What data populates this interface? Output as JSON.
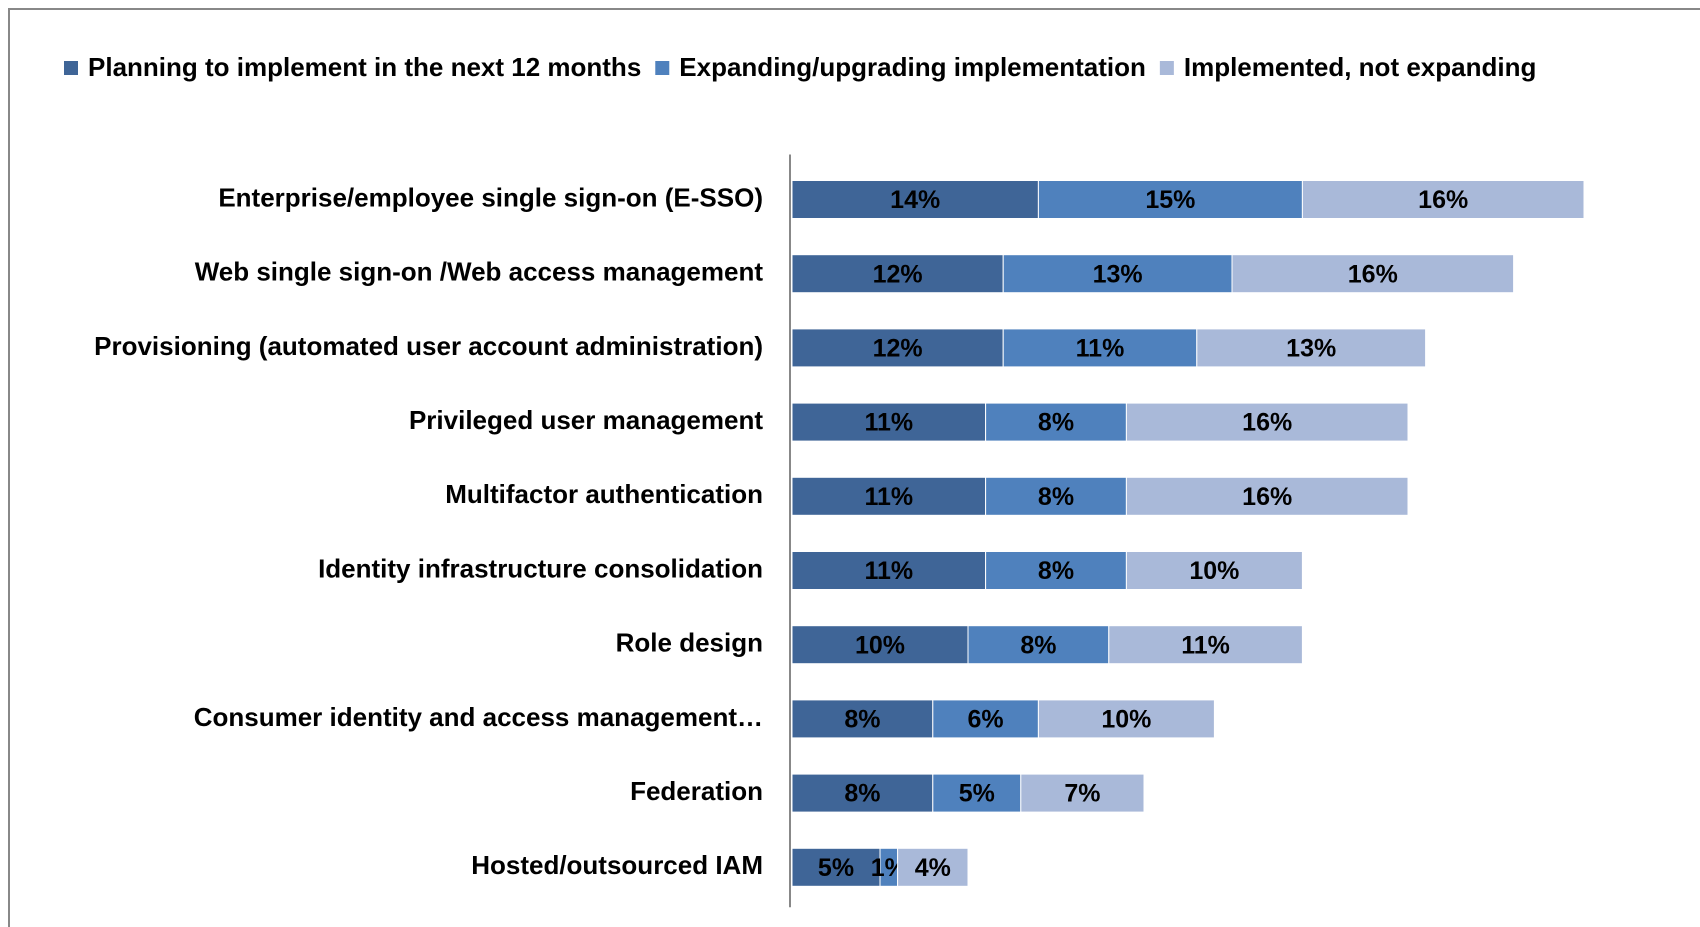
{
  "chart_data": {
    "type": "stacked-bar-horizontal",
    "categories": [
      "Enterprise/employee single sign-on (E-SSO)",
      "Web single sign-on /Web access management",
      "Provisioning (automated user account administration)",
      "Privileged user management",
      "Multifactor authentication",
      "Identity infrastructure consolidation",
      "Role design",
      "Consumer identity and access management…",
      "Federation",
      "Hosted/outsourced IAM"
    ],
    "series": [
      {
        "name": "Planning to implement in the next 12 months",
        "color": "#3f6597",
        "values": [
          14,
          12,
          12,
          11,
          11,
          11,
          10,
          8,
          8,
          5
        ],
        "value_labels": [
          "14%",
          "12%",
          "12%",
          "11%",
          "11%",
          "11%",
          "10%",
          "8%",
          "8%",
          "5%"
        ]
      },
      {
        "name": "Expanding/upgrading implementation",
        "color": "#4f81bd",
        "values": [
          15,
          13,
          11,
          8,
          8,
          8,
          8,
          6,
          5,
          1
        ],
        "value_labels": [
          "15%",
          "13%",
          "11%",
          "8%",
          "8%",
          "8%",
          "8%",
          "6%",
          "5%",
          "1%"
        ]
      },
      {
        "name": "Implemented, not expanding",
        "color": "#a9b9d9",
        "values": [
          16,
          16,
          13,
          16,
          16,
          10,
          11,
          10,
          7,
          4
        ],
        "value_labels": [
          "16%",
          "16%",
          "13%",
          "16%",
          "16%",
          "10%",
          "11%",
          "10%",
          "7%",
          "4%"
        ]
      }
    ],
    "xlim": [
      0,
      50
    ],
    "legend": "top"
  }
}
